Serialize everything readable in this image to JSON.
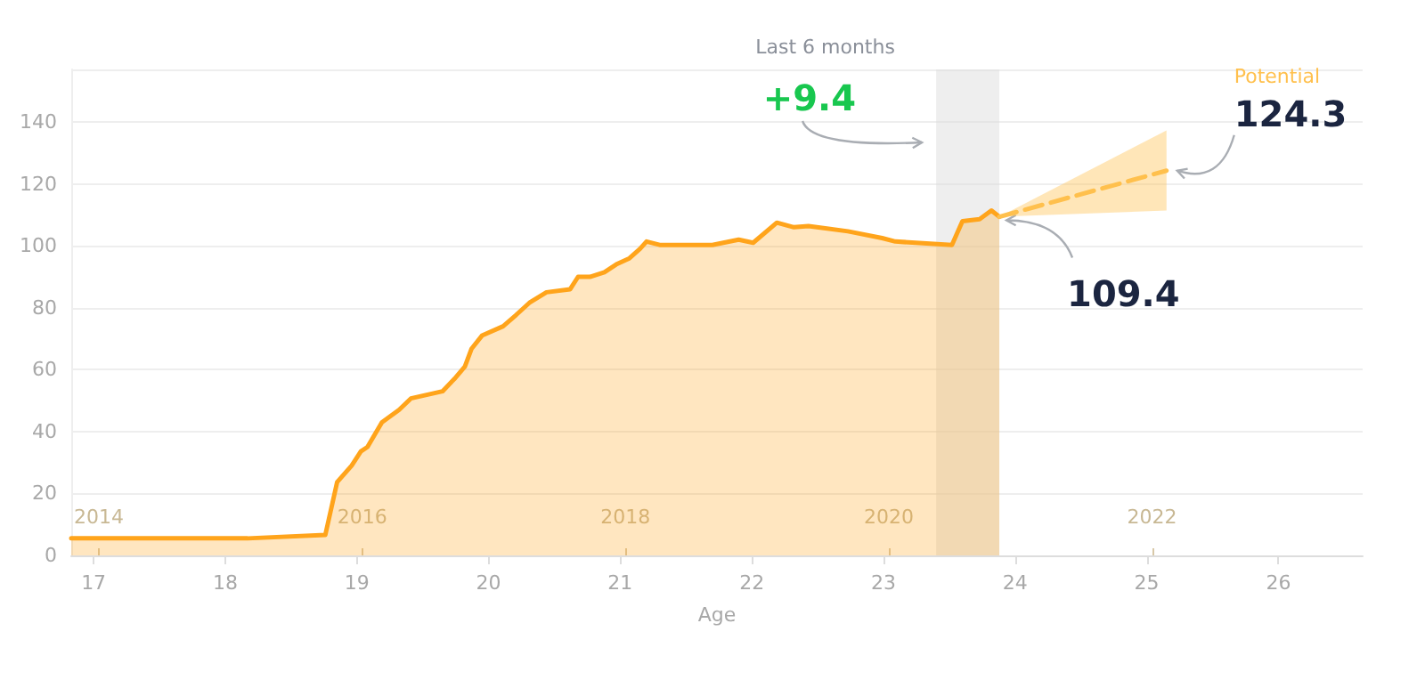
{
  "chart_data": {
    "type": "area",
    "xlabel": "Age",
    "x": [
      16.83,
      18.17,
      18.76,
      18.85,
      18.96,
      19.03,
      19.08,
      19.19,
      19.32,
      19.41,
      19.65,
      19.74,
      19.82,
      19.87,
      19.95,
      20.11,
      20.21,
      20.31,
      20.44,
      20.62,
      20.68,
      20.77,
      20.88,
      20.97,
      21.07,
      21.15,
      21.2,
      21.3,
      21.7,
      21.9,
      22.01,
      22.19,
      22.32,
      22.43,
      22.73,
      22.99,
      23.09,
      23.52,
      23.6,
      23.73,
      23.82,
      23.88
    ],
    "series": [
      {
        "color": "#ffa41b",
        "values": [
          5.5,
          5.5,
          6.6,
          23.7,
          29,
          33.6,
          35,
          43,
          47,
          50.7,
          53,
          57,
          61,
          66.7,
          71,
          74,
          77.7,
          81.6,
          85,
          86,
          90,
          90,
          91.5,
          94,
          96,
          99,
          101.4,
          100.3,
          100.3,
          102,
          101,
          107.5,
          106,
          106.4,
          104.7,
          102.5,
          101.4,
          100.3,
          108,
          108.6,
          111.4,
          109.4
        ]
      },
      {
        "type": "line",
        "name": "Potential",
        "color": "#ffc04d",
        "line_style": "dashed",
        "x": [
          23.88,
          25.15
        ],
        "values": [
          109.4,
          124.3
        ],
        "lower": [
          109.4,
          111.4
        ],
        "upper": [
          109.4,
          137.3
        ]
      }
    ],
    "bands": [
      {
        "axis": "x",
        "from": 23.4,
        "to": 23.88,
        "label": "Last 6 months",
        "color": "#d9d9d9"
      }
    ],
    "annotations": [
      "+9.4",
      {
        "text": "124.3",
        "x": 25.15,
        "y": 124.3
      },
      {
        "text": "109.4",
        "x": 23.88,
        "y": 109.4
      }
    ],
    "xlim": [
      16.83,
      26.64
    ],
    "xticks": [
      17,
      18,
      19,
      20,
      21,
      22,
      23,
      24,
      25,
      26
    ],
    "x2lim": [
      2013.79,
      2023.6
    ],
    "x2ticks": [
      2014,
      2016,
      2018,
      2020,
      2022
    ],
    "ylim": [
      0,
      157
    ],
    "yticks": [
      0,
      20,
      40,
      60,
      80,
      100,
      120,
      140
    ],
    "grid": "y",
    "legend": false,
    "marker": "none"
  }
}
